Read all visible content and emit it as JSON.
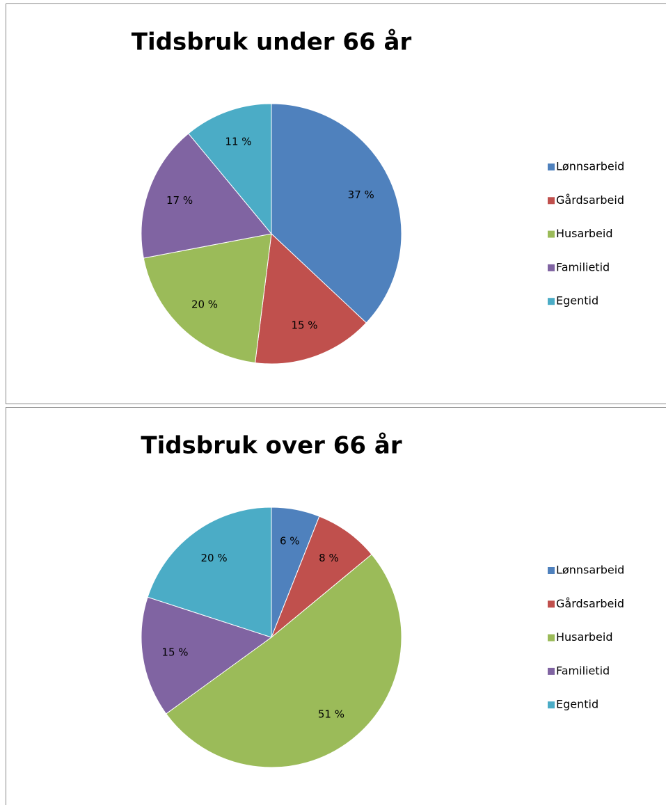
{
  "chart_data": [
    {
      "type": "pie",
      "title": "Tidsbruk under 66 år",
      "categories": [
        "Lønnsarbeid",
        "Gårdsarbeid",
        "Husarbeid",
        "Familietid",
        "Egentid"
      ],
      "values": [
        37,
        15,
        20,
        17,
        11
      ],
      "value_labels": [
        "37 %",
        "15 %",
        "20 %",
        "17 %",
        "11 %"
      ],
      "colors": [
        "#4f81bd",
        "#c0504d",
        "#9bbb59",
        "#8064a2",
        "#4bacc6"
      ],
      "legend": "right"
    },
    {
      "type": "pie",
      "title": "Tidsbruk over 66 år",
      "categories": [
        "Lønnsarbeid",
        "Gårdsarbeid",
        "Husarbeid",
        "Familietid",
        "Egentid"
      ],
      "values": [
        6,
        8,
        51,
        15,
        20
      ],
      "value_labels": [
        "6 %",
        "8 %",
        "51 %",
        "15 %",
        "20 %"
      ],
      "colors": [
        "#4f81bd",
        "#c0504d",
        "#9bbb59",
        "#8064a2",
        "#4bacc6"
      ],
      "legend": "right"
    }
  ]
}
